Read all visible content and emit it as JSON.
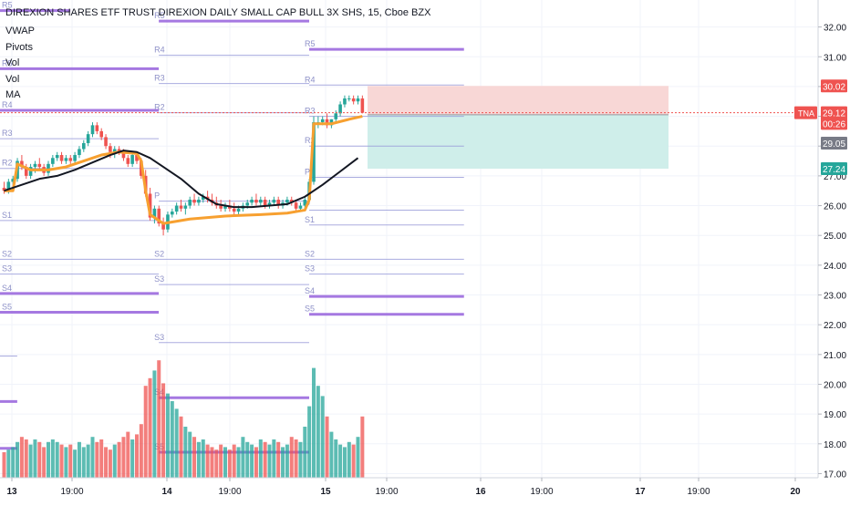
{
  "header": {
    "symbol_title": "DIREXION SHARES ETF TRUST DIREXION DAILY SMALL CAP BULL 3X SHS, 15, Cboe BZX"
  },
  "legend": {
    "indicators": [
      "VWAP",
      "Pivots",
      "Vol",
      "Vol",
      "MA"
    ]
  },
  "price_axis": {
    "ticks": [
      "32.00",
      "31.00",
      "30.00",
      "29.00",
      "28.00",
      "27.00",
      "26.00",
      "25.00",
      "24.00",
      "23.00",
      "22.00",
      "21.00",
      "20.00",
      "19.00",
      "18.00",
      "17.00"
    ],
    "tags": [
      {
        "text": "30.02",
        "value": 30.02,
        "bg": "#ef5350",
        "fg": "#ffffff",
        "name": "take-profit-price-tag"
      },
      {
        "text": "29.12",
        "value": 29.12,
        "bg": "#ef5350",
        "fg": "#ffffff",
        "name": "last-price-tag"
      },
      {
        "text": "00:26",
        "value": 28.76,
        "bg": "#ef5350",
        "fg": "#ffffff",
        "name": "bar-countdown-tag"
      },
      {
        "text": "29.05",
        "value": 28.1,
        "bg": "#787b86",
        "fg": "#ffffff",
        "name": "entry-price-tag"
      },
      {
        "text": "27.24",
        "value": 27.24,
        "bg": "#26a69a",
        "fg": "#ffffff",
        "name": "stop-price-tag"
      }
    ],
    "symbol_tag": "TNA"
  },
  "time_axis": {
    "ticks": [
      {
        "label": "13",
        "bold": true
      },
      {
        "label": "19:00",
        "bold": false
      },
      {
        "label": "14",
        "bold": true
      },
      {
        "label": "19:00",
        "bold": false
      },
      {
        "label": "15",
        "bold": true
      },
      {
        "label": "19:00",
        "bold": false
      },
      {
        "label": "16",
        "bold": true
      },
      {
        "label": "19:00",
        "bold": false
      },
      {
        "label": "17",
        "bold": true
      },
      {
        "label": "19:00",
        "bold": false
      },
      {
        "label": "20",
        "bold": true
      }
    ]
  },
  "colors": {
    "up": "#26a69a",
    "down": "#ef5350",
    "vwap": "#f7a030",
    "ma": "#131722",
    "pivot_strong": "#9c6ade",
    "pivot_weak": "#9598d8",
    "pivot_label": "#8e91c8",
    "grid": "#f0f3fa",
    "axis_text": "#131722",
    "profit_zone": "#f8d7d6",
    "loss_zone": "#cfeeea"
  },
  "chart_data": {
    "type": "candlestick",
    "symbol": "TNA",
    "title": "DIREXION SHARES ETF TRUST DIREXION DAILY SMALL CAP BULL 3X SHS, 15, Cboe BZX",
    "interval": "15",
    "exchange": "Cboe BZX",
    "ylim": [
      16.8,
      32.6
    ],
    "last_price": 29.12,
    "position_tool": {
      "target": 30.02,
      "entry": 29.05,
      "stop": 27.24
    },
    "candles": [
      [
        26.6,
        26.8,
        26.4,
        26.5
      ],
      [
        26.5,
        26.9,
        26.4,
        26.8
      ],
      [
        26.8,
        27.0,
        26.7,
        26.9
      ],
      [
        26.9,
        27.6,
        26.8,
        27.5
      ],
      [
        27.5,
        27.7,
        27.2,
        27.3
      ],
      [
        27.3,
        27.4,
        26.9,
        27.0
      ],
      [
        27.0,
        27.4,
        26.9,
        27.3
      ],
      [
        27.3,
        27.5,
        27.1,
        27.4
      ],
      [
        27.4,
        27.6,
        27.2,
        27.3
      ],
      [
        27.3,
        27.4,
        27.0,
        27.1
      ],
      [
        27.1,
        27.5,
        27.0,
        27.4
      ],
      [
        27.4,
        27.7,
        27.3,
        27.6
      ],
      [
        27.6,
        27.8,
        27.5,
        27.7
      ],
      [
        27.7,
        27.8,
        27.4,
        27.5
      ],
      [
        27.5,
        27.7,
        27.4,
        27.6
      ],
      [
        27.6,
        27.7,
        27.4,
        27.5
      ],
      [
        27.5,
        27.8,
        27.4,
        27.7
      ],
      [
        27.7,
        28.0,
        27.6,
        27.9
      ],
      [
        27.9,
        28.2,
        27.8,
        28.1
      ],
      [
        28.1,
        28.5,
        28.0,
        28.4
      ],
      [
        28.4,
        28.8,
        28.3,
        28.7
      ],
      [
        28.7,
        28.8,
        28.4,
        28.5
      ],
      [
        28.5,
        28.6,
        28.2,
        28.3
      ],
      [
        28.3,
        28.4,
        27.9,
        28.0
      ],
      [
        28.0,
        28.1,
        27.6,
        27.8
      ],
      [
        27.8,
        28.0,
        27.6,
        27.9
      ],
      [
        27.9,
        28.0,
        27.7,
        27.8
      ],
      [
        27.8,
        27.9,
        27.5,
        27.6
      ],
      [
        27.6,
        27.7,
        27.3,
        27.4
      ],
      [
        27.4,
        27.8,
        27.3,
        27.7
      ],
      [
        27.7,
        27.8,
        27.4,
        27.5
      ],
      [
        27.5,
        27.6,
        26.9,
        27.0
      ],
      [
        27.0,
        27.2,
        26.3,
        26.4
      ],
      [
        26.4,
        26.6,
        25.5,
        25.6
      ],
      [
        25.6,
        26.0,
        25.4,
        25.9
      ],
      [
        25.9,
        26.0,
        25.3,
        25.4
      ],
      [
        25.4,
        25.6,
        25.0,
        25.2
      ],
      [
        25.2,
        25.8,
        25.1,
        25.7
      ],
      [
        25.7,
        25.9,
        25.6,
        25.8
      ],
      [
        25.8,
        26.1,
        25.7,
        26.0
      ],
      [
        26.0,
        26.2,
        25.8,
        25.9
      ],
      [
        25.9,
        26.1,
        25.7,
        26.0
      ],
      [
        26.0,
        26.3,
        25.9,
        26.2
      ],
      [
        26.2,
        26.4,
        26.0,
        26.1
      ],
      [
        26.1,
        26.3,
        26.0,
        26.2
      ],
      [
        26.2,
        26.4,
        26.1,
        26.3
      ],
      [
        26.3,
        26.5,
        26.1,
        26.2
      ],
      [
        26.2,
        26.4,
        26.0,
        26.1
      ],
      [
        26.1,
        26.3,
        25.9,
        26.0
      ],
      [
        26.0,
        26.2,
        25.8,
        25.9
      ],
      [
        25.9,
        26.1,
        25.8,
        26.0
      ],
      [
        26.0,
        26.2,
        25.8,
        25.9
      ],
      [
        25.9,
        26.1,
        25.7,
        25.8
      ],
      [
        25.8,
        26.0,
        25.7,
        25.9
      ],
      [
        25.9,
        26.1,
        25.8,
        26.0
      ],
      [
        26.0,
        26.2,
        25.9,
        26.1
      ],
      [
        26.1,
        26.3,
        26.0,
        26.2
      ],
      [
        26.2,
        26.4,
        26.0,
        26.1
      ],
      [
        26.1,
        26.3,
        26.0,
        26.2
      ],
      [
        26.2,
        26.3,
        25.9,
        26.0
      ],
      [
        26.0,
        26.2,
        25.9,
        26.1
      ],
      [
        26.1,
        26.3,
        26.0,
        26.2
      ],
      [
        26.2,
        26.3,
        25.9,
        26.0
      ],
      [
        26.0,
        26.2,
        25.9,
        26.1
      ],
      [
        26.1,
        26.3,
        26.0,
        26.2
      ],
      [
        26.2,
        26.3,
        26.0,
        26.1
      ],
      [
        26.1,
        26.2,
        25.8,
        25.9
      ],
      [
        25.9,
        26.1,
        25.8,
        26.0
      ],
      [
        26.0,
        26.3,
        25.9,
        26.2
      ],
      [
        26.2,
        26.9,
        26.1,
        26.8
      ],
      [
        26.8,
        29.0,
        26.7,
        28.8
      ],
      [
        28.8,
        29.0,
        28.6,
        28.8
      ],
      [
        28.8,
        29.0,
        28.7,
        28.9
      ],
      [
        28.9,
        29.1,
        28.6,
        28.7
      ],
      [
        28.7,
        28.9,
        28.6,
        28.9
      ],
      [
        28.9,
        29.2,
        28.8,
        29.1
      ],
      [
        29.1,
        29.5,
        29.0,
        29.4
      ],
      [
        29.4,
        29.7,
        29.3,
        29.6
      ],
      [
        29.6,
        29.7,
        29.5,
        29.6
      ],
      [
        29.6,
        29.7,
        29.4,
        29.5
      ],
      [
        29.5,
        29.7,
        29.4,
        29.6
      ],
      [
        29.6,
        29.7,
        29.1,
        29.12
      ]
    ],
    "volume": [
      1.0,
      1.1,
      1.2,
      1.4,
      1.6,
      1.5,
      1.3,
      1.5,
      1.4,
      1.2,
      1.4,
      1.5,
      1.4,
      1.3,
      1.2,
      1.3,
      1.1,
      1.4,
      1.2,
      1.3,
      1.6,
      1.4,
      1.5,
      1.2,
      1.1,
      1.3,
      1.4,
      1.6,
      1.8,
      1.5,
      1.7,
      2.1,
      3.6,
      3.9,
      4.2,
      4.6,
      3.7,
      3.3,
      3.0,
      2.7,
      2.4,
      2.0,
      1.8,
      1.6,
      1.4,
      1.5,
      1.3,
      1.2,
      1.1,
      1.3,
      1.2,
      1.1,
      1.3,
      1.2,
      1.6,
      1.4,
      1.3,
      1.2,
      1.5,
      1.4,
      1.3,
      1.5,
      1.4,
      1.2,
      1.3,
      1.6,
      1.5,
      1.4,
      2.0,
      2.8,
      4.3,
      3.6,
      3.2,
      2.4,
      1.8,
      1.5,
      1.3,
      1.2,
      1.4,
      1.3,
      1.6,
      2.4
    ],
    "vwap": [
      [
        0,
        26.5
      ],
      [
        2,
        26.5
      ],
      [
        3,
        27.4
      ],
      [
        6,
        27.2
      ],
      [
        10,
        27.2
      ],
      [
        14,
        27.3
      ],
      [
        18,
        27.5
      ],
      [
        22,
        27.7
      ],
      [
        26,
        27.8
      ],
      [
        30,
        27.75
      ],
      [
        31,
        27.5
      ],
      [
        32,
        26.5
      ],
      [
        33,
        25.7
      ],
      [
        36,
        25.4
      ],
      [
        42,
        25.55
      ],
      [
        50,
        25.65
      ],
      [
        58,
        25.7
      ],
      [
        64,
        25.75
      ],
      [
        68,
        25.85
      ],
      [
        69,
        26.2
      ],
      [
        70,
        28.75
      ],
      [
        74,
        28.75
      ],
      [
        78,
        28.9
      ],
      [
        81,
        29.0
      ]
    ],
    "ma": [
      [
        0,
        26.5
      ],
      [
        4,
        26.7
      ],
      [
        8,
        26.9
      ],
      [
        12,
        27.0
      ],
      [
        16,
        27.2
      ],
      [
        20,
        27.45
      ],
      [
        24,
        27.7
      ],
      [
        27,
        27.85
      ],
      [
        30,
        27.8
      ],
      [
        33,
        27.6
      ],
      [
        36,
        27.3
      ],
      [
        40,
        26.9
      ],
      [
        44,
        26.4
      ],
      [
        48,
        26.05
      ],
      [
        52,
        25.95
      ],
      [
        56,
        25.95
      ],
      [
        60,
        26.0
      ],
      [
        64,
        26.05
      ],
      [
        68,
        26.3
      ],
      [
        72,
        26.7
      ],
      [
        76,
        27.15
      ],
      [
        80,
        27.6
      ]
    ],
    "pivots": [
      {
        "label": "R5",
        "value": 32.55,
        "from": 0,
        "to": 16,
        "strong": true,
        "lx": 0
      },
      {
        "label": "R5",
        "value": 32.2,
        "from": 36,
        "to": 70,
        "strong": true,
        "lx": 36
      },
      {
        "label": "R5",
        "value": 31.25,
        "from": 70,
        "to": 105,
        "strong": true,
        "lx": 70
      },
      {
        "label": "R4",
        "value": 31.05,
        "from": 36,
        "to": 70,
        "strong": false,
        "lx": 36
      },
      {
        "label": "R4",
        "value": 30.05,
        "from": 70,
        "to": 105,
        "strong": false,
        "lx": 70
      },
      {
        "label": "R3",
        "value": 30.1,
        "from": 36,
        "to": 70,
        "strong": false,
        "lx": 36
      },
      {
        "label": "R4",
        "value": 29.2,
        "from": 0,
        "to": 36,
        "strong": true,
        "lx": 0
      },
      {
        "label": "R5",
        "value": 30.6,
        "from": 0,
        "to": 36,
        "strong": true,
        "lx": 0
      },
      {
        "label": "R2",
        "value": 29.12,
        "from": 36,
        "to": 70,
        "strong": false,
        "lx": 36
      },
      {
        "label": "R3",
        "value": 29.0,
        "from": 70,
        "to": 105,
        "strong": false,
        "lx": 70
      },
      {
        "label": "R3",
        "value": 28.25,
        "from": 0,
        "to": 36,
        "strong": false,
        "lx": 0
      },
      {
        "label": "R2",
        "value": 28.0,
        "from": 70,
        "to": 105,
        "strong": false,
        "lx": 70
      },
      {
        "label": "R2",
        "value": 27.25,
        "from": 0,
        "to": 36,
        "strong": false,
        "lx": 0
      },
      {
        "label": "P",
        "value": 26.95,
        "from": 70,
        "to": 105,
        "strong": false,
        "lx": 70
      },
      {
        "label": "P",
        "value": 26.15,
        "from": 36,
        "to": 70,
        "strong": false,
        "lx": 36
      },
      {
        "label": "P",
        "value": 25.85,
        "from": 70,
        "to": 105,
        "strong": false,
        "lx": 70
      },
      {
        "label": "S1",
        "value": 25.35,
        "from": 70,
        "to": 105,
        "strong": false,
        "lx": 70
      },
      {
        "label": "S1",
        "value": 25.5,
        "from": 0,
        "to": 36,
        "strong": false,
        "lx": 0
      },
      {
        "label": "S2",
        "value": 24.2,
        "from": 0,
        "to": 36,
        "strong": false,
        "lx": 0
      },
      {
        "label": "S2",
        "value": 24.2,
        "from": 36,
        "to": 70,
        "strong": false,
        "lx": 36
      },
      {
        "label": "S2",
        "value": 24.2,
        "from": 70,
        "to": 105,
        "strong": false,
        "lx": 70
      },
      {
        "label": "S3",
        "value": 23.7,
        "from": 0,
        "to": 36,
        "strong": false,
        "lx": 0
      },
      {
        "label": "S3",
        "value": 23.7,
        "from": 70,
        "to": 105,
        "strong": false,
        "lx": 70
      },
      {
        "label": "S3",
        "value": 23.35,
        "from": 36,
        "to": 70,
        "strong": false,
        "lx": 36
      },
      {
        "label": "S4",
        "value": 23.05,
        "from": 0,
        "to": 36,
        "strong": true,
        "lx": 0
      },
      {
        "label": "S4",
        "value": 22.95,
        "from": 70,
        "to": 105,
        "strong": true,
        "lx": 70
      },
      {
        "label": "S5",
        "value": 22.42,
        "from": 0,
        "to": 36,
        "strong": true,
        "lx": 0
      },
      {
        "label": "S5",
        "value": 22.35,
        "from": 70,
        "to": 105,
        "strong": true,
        "lx": 70
      },
      {
        "label": "S3",
        "value": 21.4,
        "from": 36,
        "to": 70,
        "strong": false,
        "lx": 36
      },
      {
        "label": "",
        "value": 20.95,
        "from": 0,
        "to": 4,
        "strong": false,
        "lx": 0
      },
      {
        "label": "S4",
        "value": 19.55,
        "from": 36,
        "to": 70,
        "strong": true,
        "lx": 36
      },
      {
        "label": "",
        "value": 19.42,
        "from": 0,
        "to": 4,
        "strong": true,
        "lx": 0
      },
      {
        "label": "",
        "value": 17.85,
        "from": 0,
        "to": 4,
        "strong": true,
        "lx": 0
      },
      {
        "label": "S5",
        "value": 17.72,
        "from": 36,
        "to": 70,
        "strong": true,
        "lx": 36
      }
    ]
  }
}
